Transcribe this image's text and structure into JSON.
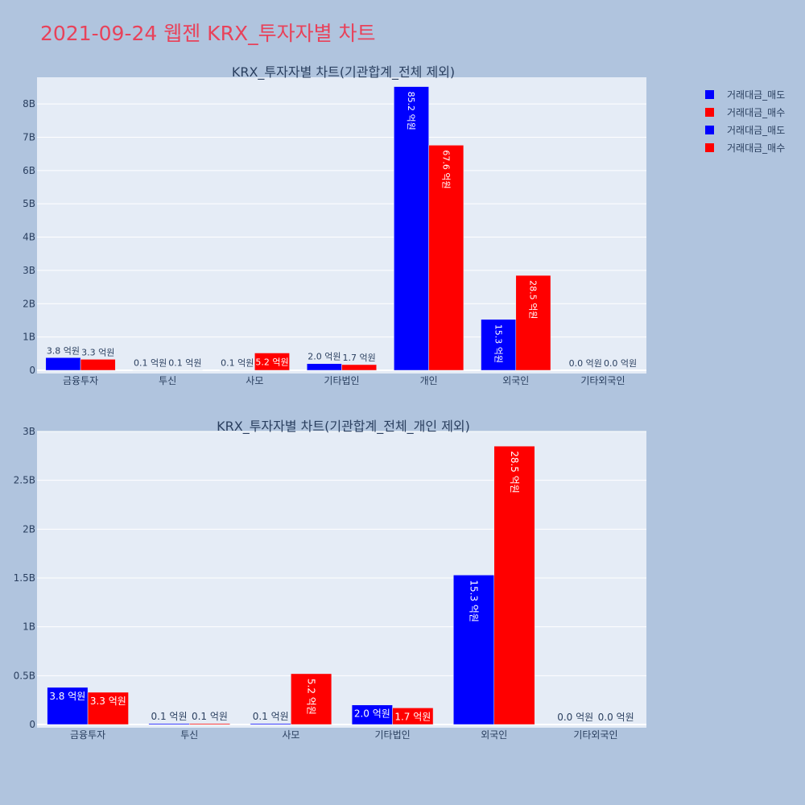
{
  "title": "2021-09-24 웹젠 KRX_투자자별 차트",
  "legend": [
    {
      "label": "거래대금_매도",
      "color": "#0000ff"
    },
    {
      "label": "거래대금_매수",
      "color": "#ff0000"
    },
    {
      "label": "거래대금_매도",
      "color": "#0000ff"
    },
    {
      "label": "거래대금_매수",
      "color": "#ff0000"
    }
  ],
  "chart_data": [
    {
      "type": "bar",
      "title": "KRX_투자자별 차트(기관합계_전체 제외)",
      "categories": [
        "금융투자",
        "투신",
        "사모",
        "기타법인",
        "개인",
        "외국인",
        "기타외국인"
      ],
      "series": [
        {
          "name": "거래대금_매도",
          "color": "#0000ff",
          "values": [
            380000000,
            10000000,
            10000000,
            200000000,
            8520000000,
            1530000000,
            0
          ],
          "labels": [
            "3.8 억원",
            "0.1 억원",
            "0.1 억원",
            "2.0 억원",
            "85.2 억원",
            "15.3 억원",
            "0.0 억원"
          ]
        },
        {
          "name": "거래대금_매수",
          "color": "#ff0000",
          "values": [
            330000000,
            10000000,
            520000000,
            170000000,
            6760000000,
            2850000000,
            0
          ],
          "labels": [
            "3.3 억원",
            "0.1 억원",
            "5.2 억원",
            "1.7 억원",
            "67.6 억원",
            "28.5 억원",
            "0.0 억원"
          ]
        }
      ],
      "ylim": [
        0,
        8800000000.0
      ],
      "yticks": [
        0,
        1000000000.0,
        2000000000.0,
        3000000000.0,
        4000000000.0,
        5000000000.0,
        6000000000.0,
        7000000000.0,
        8000000000.0
      ],
      "ytick_labels": [
        "0",
        "1B",
        "2B",
        "3B",
        "4B",
        "5B",
        "6B",
        "7B",
        "8B"
      ],
      "grid": true
    },
    {
      "type": "bar",
      "title": "KRX_투자자별 차트(기관합계_전체_개인 제외)",
      "categories": [
        "금융투자",
        "투신",
        "사모",
        "기타법인",
        "외국인",
        "기타외국인"
      ],
      "series": [
        {
          "name": "거래대금_매도",
          "color": "#0000ff",
          "values": [
            380000000,
            10000000,
            10000000,
            200000000,
            1530000000,
            0
          ],
          "labels": [
            "3.8 억원",
            "0.1 억원",
            "0.1 억원",
            "2.0 억원",
            "15.3 억원",
            "0.0 억원"
          ]
        },
        {
          "name": "거래대금_매수",
          "color": "#ff0000",
          "values": [
            330000000,
            10000000,
            520000000,
            170000000,
            2850000000,
            0
          ],
          "labels": [
            "3.3 억원",
            "0.1 억원",
            "5.2 억원",
            "1.7 억원",
            "28.5 억원",
            "0.0 억원"
          ]
        }
      ],
      "ylim": [
        0,
        3000000000.0
      ],
      "yticks": [
        0,
        500000000.0,
        1000000000.0,
        1500000000.0,
        2000000000.0,
        2500000000.0,
        3000000000.0
      ],
      "ytick_labels": [
        "0",
        "0.5B",
        "1B",
        "1.5B",
        "2B",
        "2.5B",
        "3B"
      ],
      "grid": true
    }
  ]
}
